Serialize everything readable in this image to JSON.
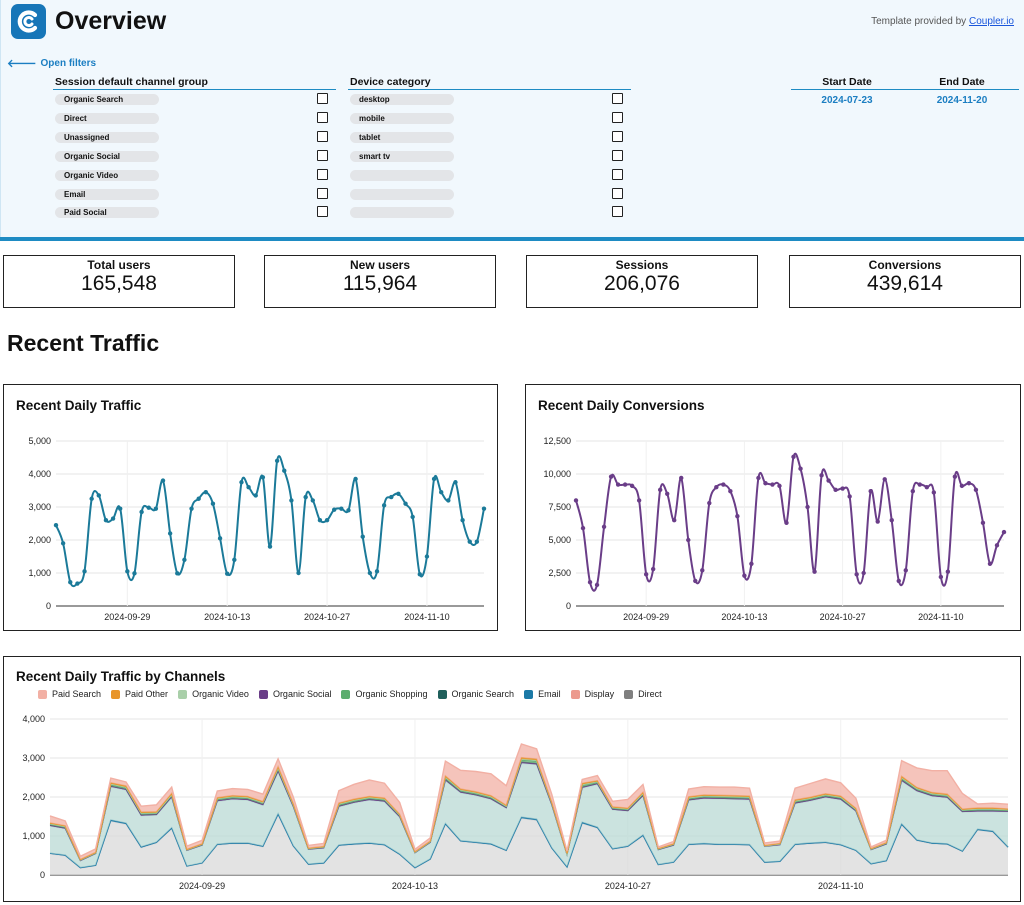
{
  "header": {
    "title": "Overview",
    "template_note": "Template provided by ",
    "template_link": "Coupler.io",
    "open_filters": "Open filters"
  },
  "filters": {
    "channel": {
      "title": "Session default channel group",
      "options": [
        "Organic Search",
        "Direct",
        "Unassigned",
        "Organic Social",
        "Organic Video",
        "Email",
        "Paid Social"
      ]
    },
    "device": {
      "title": "Device category",
      "options": [
        "desktop",
        "mobile",
        "tablet",
        "smart tv",
        "",
        "",
        ""
      ]
    },
    "dates": {
      "start_label": "Start Date",
      "end_label": "End Date",
      "start_value": "2024-07-23",
      "end_value": "2024-11-20"
    }
  },
  "kpis": [
    {
      "label": "Total users",
      "value": "165,548"
    },
    {
      "label": "New users",
      "value": "115,964"
    },
    {
      "label": "Sessions",
      "value": "206,076"
    },
    {
      "label": "Conversions",
      "value": "439,614"
    }
  ],
  "sections": {
    "recent_traffic": "Recent Traffic"
  },
  "colors": {
    "accent": "#1e8bc3",
    "traffic_line": "#1b7a99",
    "conversion_line": "#6a3d88"
  },
  "chart_data": [
    {
      "id": "traffic",
      "type": "line",
      "title": "Recent Daily Traffic",
      "xlabel": "",
      "ylabel": "",
      "ylim": [
        0,
        5000
      ],
      "yticks": [
        0,
        1000,
        2000,
        3000,
        4000,
        5000
      ],
      "ytick_labels": [
        "0",
        "1,000",
        "2,000",
        "3,000",
        "4,000",
        "5,000"
      ],
      "xtick_labels": [
        "2024-09-29",
        "2024-10-13",
        "2024-10-27",
        "2024-11-10"
      ],
      "xtick_index": [
        10,
        24,
        38,
        52
      ],
      "values": [
        2450,
        1900,
        720,
        680,
        1050,
        3250,
        3350,
        2600,
        2650,
        2950,
        1050,
        990,
        2850,
        2980,
        2950,
        3800,
        2200,
        990,
        1400,
        2950,
        3250,
        3450,
        3100,
        2050,
        980,
        1400,
        3750,
        3600,
        3350,
        3900,
        1800,
        4400,
        4100,
        3200,
        1000,
        3300,
        3200,
        2600,
        2600,
        2920,
        2950,
        2900,
        3850,
        2100,
        1000,
        1050,
        3050,
        3300,
        3400,
        3100,
        2700,
        960,
        1500,
        3850,
        3450,
        3200,
        3750,
        2600,
        1950,
        1950,
        2950
      ]
    },
    {
      "id": "conversions",
      "type": "line",
      "title": "Recent Daily Conversions",
      "xlabel": "",
      "ylabel": "",
      "ylim": [
        0,
        12500
      ],
      "yticks": [
        0,
        2500,
        5000,
        7500,
        10000,
        12500
      ],
      "ytick_labels": [
        "0",
        "2,500",
        "5,000",
        "7,500",
        "10,000",
        "12,500"
      ],
      "xtick_labels": [
        "2024-09-29",
        "2024-10-13",
        "2024-10-27",
        "2024-11-10"
      ],
      "xtick_index": [
        10,
        24,
        38,
        52
      ],
      "values": [
        8000,
        5900,
        1800,
        1600,
        6000,
        9800,
        9200,
        9200,
        9100,
        8000,
        2400,
        2800,
        8800,
        8500,
        6500,
        9700,
        5000,
        1900,
        2700,
        7800,
        9000,
        9200,
        8700,
        6800,
        2300,
        3200,
        9700,
        9300,
        9200,
        9100,
        6300,
        11300,
        10400,
        7500,
        2600,
        9900,
        9500,
        8800,
        8900,
        8300,
        2400,
        2500,
        8700,
        6400,
        9600,
        6500,
        1900,
        2700,
        8700,
        9200,
        9000,
        8600,
        2200,
        2600,
        9800,
        9100,
        9300,
        8800,
        6300,
        3200,
        4600,
        5600
      ]
    },
    {
      "id": "channels",
      "type": "area",
      "title": "Recent Daily Traffic by Channels",
      "xlabel": "",
      "ylabel": "",
      "ylim": [
        0,
        4000
      ],
      "yticks": [
        0,
        1000,
        2000,
        3000,
        4000
      ],
      "ytick_labels": [
        "0",
        "1,000",
        "2,000",
        "3,000",
        "4,000"
      ],
      "xtick_labels": [
        "2024-09-29",
        "2024-10-13",
        "2024-10-27",
        "2024-11-10"
      ],
      "xtick_index": [
        10,
        24,
        38,
        52
      ],
      "legend": [
        "Paid Search",
        "Paid Other",
        "Organic Video",
        "Organic Social",
        "Organic Shopping",
        "Organic Search",
        "Email",
        "Display",
        "Direct"
      ],
      "series": [
        {
          "name": "Direct",
          "color": "#d9d9d9",
          "values": [
            540,
            490,
            180,
            240,
            1380,
            1300,
            700,
            820,
            1180,
            220,
            300,
            770,
            800,
            800,
            720,
            1530,
            730,
            270,
            300,
            750,
            780,
            800,
            760,
            520,
            180,
            400,
            1290,
            860,
            820,
            780,
            620,
            1450,
            1400,
            680,
            200,
            1320,
            1200,
            660,
            720,
            1000,
            260,
            320,
            770,
            790,
            770,
            770,
            760,
            320,
            340,
            770,
            800,
            820,
            760,
            620,
            280,
            360,
            1280,
            880,
            800,
            780,
            600,
            1150,
            1100,
            700
          ]
        },
        {
          "name": "Email",
          "color": "#1b79a6",
          "values": [
            20,
            20,
            10,
            10,
            30,
            30,
            20,
            20,
            30,
            10,
            10,
            20,
            20,
            20,
            20,
            40,
            20,
            10,
            10,
            20,
            20,
            20,
            20,
            15,
            10,
            10,
            30,
            20,
            20,
            20,
            15,
            35,
            30,
            15,
            10,
            30,
            25,
            15,
            20,
            25,
            10,
            10,
            20,
            20,
            20,
            20,
            20,
            10,
            10,
            20,
            20,
            20,
            20,
            15,
            10,
            10,
            30,
            20,
            20,
            20,
            15,
            25,
            25,
            20
          ]
        },
        {
          "name": "Organic Search",
          "color": "#b9dad4",
          "values": [
            700,
            680,
            180,
            300,
            850,
            850,
            800,
            700,
            780,
            400,
            450,
            1100,
            1120,
            1100,
            1050,
            1080,
            1000,
            380,
            380,
            980,
            1050,
            1100,
            1100,
            950,
            380,
            420,
            1100,
            1230,
            1200,
            1140,
            1080,
            1380,
            1400,
            1100,
            320,
            880,
            1100,
            1000,
            900,
            1000,
            380,
            430,
            1120,
            1150,
            1160,
            1150,
            1150,
            400,
            420,
            1040,
            1080,
            1150,
            1150,
            1000,
            360,
            420,
            1100,
            1250,
            1200,
            1180,
            1000,
            450,
            500,
            900
          ]
        },
        {
          "name": "Organic Social",
          "color": "#6a3d88",
          "values": [
            15,
            15,
            5,
            5,
            20,
            20,
            20,
            15,
            20,
            5,
            10,
            20,
            20,
            20,
            20,
            25,
            15,
            5,
            10,
            20,
            20,
            20,
            20,
            15,
            5,
            10,
            25,
            20,
            20,
            20,
            15,
            30,
            30,
            15,
            5,
            25,
            20,
            15,
            15,
            20,
            5,
            10,
            20,
            20,
            20,
            20,
            20,
            5,
            10,
            20,
            20,
            20,
            20,
            15,
            5,
            10,
            25,
            20,
            20,
            20,
            15,
            20,
            20,
            15
          ]
        },
        {
          "name": "Organic Shopping",
          "color": "#5cad6e",
          "values": [
            30,
            30,
            10,
            10,
            40,
            40,
            40,
            30,
            40,
            10,
            15,
            40,
            40,
            40,
            40,
            50,
            30,
            10,
            15,
            40,
            40,
            40,
            40,
            30,
            10,
            15,
            50,
            40,
            40,
            40,
            30,
            60,
            60,
            30,
            10,
            50,
            40,
            30,
            30,
            40,
            10,
            15,
            40,
            40,
            40,
            40,
            40,
            10,
            15,
            40,
            40,
            40,
            40,
            30,
            10,
            15,
            50,
            40,
            40,
            40,
            30,
            40,
            40,
            30
          ]
        },
        {
          "name": "Organic Video",
          "color": "#a9cfa9",
          "values": [
            10,
            10,
            5,
            5,
            15,
            15,
            10,
            10,
            15,
            5,
            5,
            10,
            10,
            10,
            10,
            20,
            10,
            5,
            5,
            10,
            10,
            10,
            10,
            10,
            5,
            5,
            15,
            10,
            10,
            10,
            10,
            20,
            20,
            10,
            5,
            15,
            10,
            10,
            10,
            10,
            5,
            5,
            10,
            10,
            10,
            10,
            10,
            5,
            5,
            10,
            10,
            10,
            10,
            10,
            5,
            5,
            15,
            10,
            10,
            10,
            10,
            10,
            10,
            10
          ]
        },
        {
          "name": "Paid Other",
          "color": "#e8952a",
          "values": [
            20,
            20,
            10,
            10,
            30,
            30,
            25,
            25,
            30,
            10,
            10,
            25,
            25,
            25,
            25,
            35,
            25,
            10,
            10,
            25,
            25,
            25,
            25,
            20,
            10,
            10,
            30,
            25,
            25,
            25,
            20,
            35,
            35,
            20,
            10,
            30,
            25,
            20,
            20,
            25,
            10,
            10,
            25,
            25,
            25,
            25,
            25,
            10,
            10,
            25,
            25,
            25,
            25,
            20,
            10,
            10,
            30,
            25,
            25,
            25,
            20,
            25,
            25,
            20
          ]
        },
        {
          "name": "Paid Search",
          "color": "#f2b0a4",
          "values": [
            180,
            120,
            80,
            90,
            120,
            100,
            150,
            180,
            160,
            80,
            90,
            170,
            180,
            180,
            190,
            200,
            170,
            70,
            80,
            320,
            380,
            420,
            380,
            300,
            60,
            80,
            380,
            480,
            520,
            560,
            500,
            350,
            260,
            200,
            60,
            100,
            130,
            140,
            220,
            200,
            40,
            60,
            200,
            210,
            210,
            220,
            200,
            60,
            60,
            300,
            350,
            380,
            340,
            260,
            40,
            60,
            400,
            500,
            560,
            600,
            400,
            100,
            120,
            120
          ]
        }
      ]
    }
  ]
}
